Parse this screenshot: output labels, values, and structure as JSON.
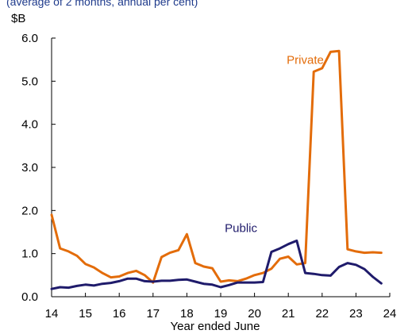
{
  "chart_data": {
    "type": "line",
    "subtitle": "(average of 2 months, annual per cent)",
    "ylabel": "$B",
    "xlabel": "Year ended June",
    "ylim": [
      0,
      6
    ],
    "xlim": [
      14,
      24
    ],
    "y_ticks": [
      "0.0",
      "1.0",
      "2.0",
      "3.0",
      "4.0",
      "5.0",
      "6.0"
    ],
    "x_ticks": [
      "14",
      "15",
      "16",
      "17",
      "18",
      "19",
      "20",
      "21",
      "22",
      "23",
      "24"
    ],
    "grid": false,
    "series": [
      {
        "name": "Private",
        "color": "#e36c0a",
        "x": [
          14.0,
          14.25,
          14.5,
          14.75,
          15.0,
          15.25,
          15.5,
          15.75,
          16.0,
          16.25,
          16.5,
          16.75,
          17.0,
          17.25,
          17.5,
          17.75,
          18.0,
          18.25,
          18.5,
          18.75,
          19.0,
          19.25,
          19.5,
          19.75,
          20.0,
          20.25,
          20.5,
          20.75,
          21.0,
          21.25,
          21.5,
          21.75,
          22.0,
          22.25,
          22.5,
          22.75,
          23.0,
          23.25,
          23.5,
          23.75
        ],
        "values": [
          1.9,
          1.12,
          1.05,
          0.95,
          0.76,
          0.68,
          0.55,
          0.45,
          0.47,
          0.55,
          0.6,
          0.5,
          0.33,
          0.92,
          1.02,
          1.08,
          1.45,
          0.78,
          0.7,
          0.66,
          0.35,
          0.38,
          0.36,
          0.42,
          0.5,
          0.55,
          0.65,
          0.88,
          0.93,
          0.75,
          0.78,
          5.22,
          5.3,
          5.68,
          5.7,
          1.1,
          1.05,
          1.02,
          1.03,
          1.02
        ]
      },
      {
        "name": "Public",
        "color": "#1f1b6b",
        "x": [
          14.0,
          14.25,
          14.5,
          14.75,
          15.0,
          15.25,
          15.5,
          15.75,
          16.0,
          16.25,
          16.5,
          16.75,
          17.0,
          17.25,
          17.5,
          17.75,
          18.0,
          18.25,
          18.5,
          18.75,
          19.0,
          19.25,
          19.5,
          19.75,
          20.0,
          20.25,
          20.5,
          20.75,
          21.0,
          21.25,
          21.5,
          21.75,
          22.0,
          22.25,
          22.5,
          22.75,
          23.0,
          23.25,
          23.5,
          23.75
        ],
        "values": [
          0.18,
          0.22,
          0.21,
          0.25,
          0.28,
          0.26,
          0.3,
          0.32,
          0.36,
          0.42,
          0.42,
          0.36,
          0.35,
          0.37,
          0.37,
          0.39,
          0.4,
          0.35,
          0.3,
          0.28,
          0.22,
          0.27,
          0.33,
          0.33,
          0.33,
          0.34,
          1.04,
          1.12,
          1.22,
          1.3,
          0.55,
          0.53,
          0.5,
          0.49,
          0.69,
          0.78,
          0.74,
          0.64,
          0.46,
          0.31
        ]
      }
    ],
    "annotations": [
      {
        "text": "Private",
        "series": "Private",
        "x": 21.5,
        "y": 5.4
      },
      {
        "text": "Public",
        "series": "Public",
        "x": 19.6,
        "y": 1.5
      }
    ]
  }
}
